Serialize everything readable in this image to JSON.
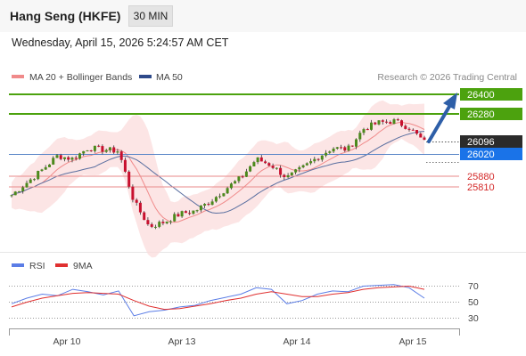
{
  "header": {
    "title": "Hang Seng (HKFE)",
    "timeframe": "30 MIN",
    "datetime": "Wednesday, April 15, 2026 5:24:57 AM CET"
  },
  "legend": {
    "bollinger_label": "MA 20 + Bollinger Bands",
    "ma50_label": "MA 50",
    "copyright": "Research © 2026 Trading Central"
  },
  "colors": {
    "resistance": "#4ca20e",
    "support": "#e35b5b",
    "current_price_bg": "#2b2b2b",
    "pivot_bg": "#1a73e8",
    "ma20": "#f08a8a",
    "bollinger_fill": "#fbdcdc",
    "ma50": "#5a6fa0",
    "arrow": "#2e5fa8",
    "candle_up": "#4c8a1c",
    "candle_down": "#c8102e",
    "rsi": "#5b7de6",
    "rsi_ma": "#e03030"
  },
  "chart_data": [
    {
      "type": "candlestick",
      "title": "",
      "instrument": "Hang Seng (HKFE)",
      "timeframe": "30 MIN",
      "x_ticks": [
        "Apr 10",
        "Apr 13",
        "Apr 14",
        "Apr 15"
      ],
      "levels": {
        "resistance": [
          26400,
          26280
        ],
        "current": 26096,
        "pivot": 26020,
        "support": [
          25880,
          25810
        ]
      },
      "level_labels": {
        "r1": "26400",
        "r2": "26280",
        "current": "26096",
        "pivot": "26020",
        "s1": "25880",
        "s2": "25810"
      },
      "price_range_approx": [
        25490,
        26420
      ],
      "session_closes_approx": [
        25760,
        25840,
        25920,
        26010,
        25990,
        26060,
        26050,
        26040,
        25720,
        25560,
        25590,
        25640,
        25660,
        25720,
        25800,
        25870,
        25990,
        25950,
        25870,
        25930,
        26000,
        26060,
        26050,
        26180,
        26220,
        26230,
        26190,
        26096
      ],
      "overlays": [
        "MA 20 + Bollinger Bands",
        "MA 50"
      ],
      "projection": "upward arrow from current price toward 26400",
      "grid": false,
      "legend_position": "top-left"
    },
    {
      "type": "line",
      "title": "",
      "series": [
        {
          "name": "RSI",
          "values": [
            48,
            55,
            60,
            58,
            66,
            63,
            59,
            64,
            33,
            38,
            40,
            44,
            46,
            52,
            56,
            60,
            68,
            66,
            48,
            52,
            60,
            64,
            63,
            70,
            71,
            72,
            68,
            55
          ]
        },
        {
          "name": "9MA",
          "values": [
            44,
            50,
            55,
            58,
            61,
            62,
            61,
            60,
            52,
            45,
            41,
            42,
            45,
            48,
            52,
            55,
            60,
            63,
            60,
            57,
            57,
            60,
            62,
            66,
            68,
            69,
            70,
            66
          ]
        }
      ],
      "y_ticks": [
        70,
        50,
        30
      ],
      "ylim": [
        20,
        80
      ],
      "legend_position": "top-left"
    }
  ]
}
